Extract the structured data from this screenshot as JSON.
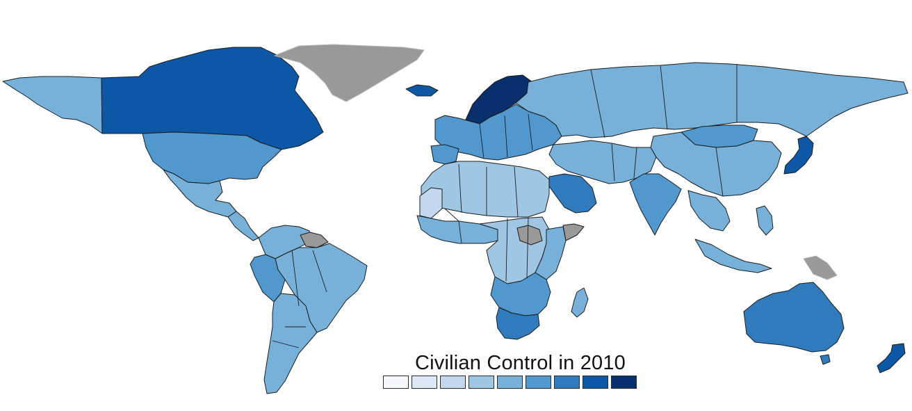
{
  "legend": {
    "title": "Civilian Control in 2010",
    "colors": [
      "#f4f8fd",
      "#dce8f6",
      "#c3d8ee",
      "#9fc6e3",
      "#77b1d9",
      "#5198ce",
      "#2f7bbd",
      "#0c58a7",
      "#0a2f6d"
    ]
  },
  "palette": {
    "missing": "#999999",
    "ocean": "#ffffff"
  },
  "regions": [
    {
      "name": "canada",
      "class": 8
    },
    {
      "name": "usa",
      "class": 6
    },
    {
      "name": "alaska",
      "class": 5
    },
    {
      "name": "mexico",
      "class": 5
    },
    {
      "name": "central-america",
      "class": 5
    },
    {
      "name": "greenland",
      "class": "missing"
    },
    {
      "name": "iceland",
      "class": 8
    },
    {
      "name": "scandinavia",
      "class": 9
    },
    {
      "name": "europe",
      "class": 6
    },
    {
      "name": "russia",
      "class": 5
    },
    {
      "name": "china",
      "class": 5
    },
    {
      "name": "mongolia",
      "class": 6
    },
    {
      "name": "middle-east",
      "class": 5
    },
    {
      "name": "saudi-arabia",
      "class": 7
    },
    {
      "name": "india",
      "class": 6
    },
    {
      "name": "southeast-asia",
      "class": 5
    },
    {
      "name": "japan",
      "class": 8
    },
    {
      "name": "north-africa",
      "class": 4
    },
    {
      "name": "western-sahara",
      "class": 3
    },
    {
      "name": "west-africa",
      "class": 5
    },
    {
      "name": "central-africa",
      "class": 4
    },
    {
      "name": "south-sudan",
      "class": "missing"
    },
    {
      "name": "somalia",
      "class": "missing"
    },
    {
      "name": "east-africa",
      "class": 5
    },
    {
      "name": "southern-africa",
      "class": 6
    },
    {
      "name": "south-africa",
      "class": 7
    },
    {
      "name": "madagascar",
      "class": 5
    },
    {
      "name": "colombia-venezuela",
      "class": 5
    },
    {
      "name": "guianas",
      "class": "missing"
    },
    {
      "name": "brazil",
      "class": 5
    },
    {
      "name": "peru",
      "class": 6
    },
    {
      "name": "southern-cone",
      "class": 5
    },
    {
      "name": "australia",
      "class": 7
    },
    {
      "name": "new-zealand",
      "class": 8
    },
    {
      "name": "papua-new-guinea",
      "class": "missing"
    },
    {
      "name": "indonesia",
      "class": 5
    }
  ]
}
